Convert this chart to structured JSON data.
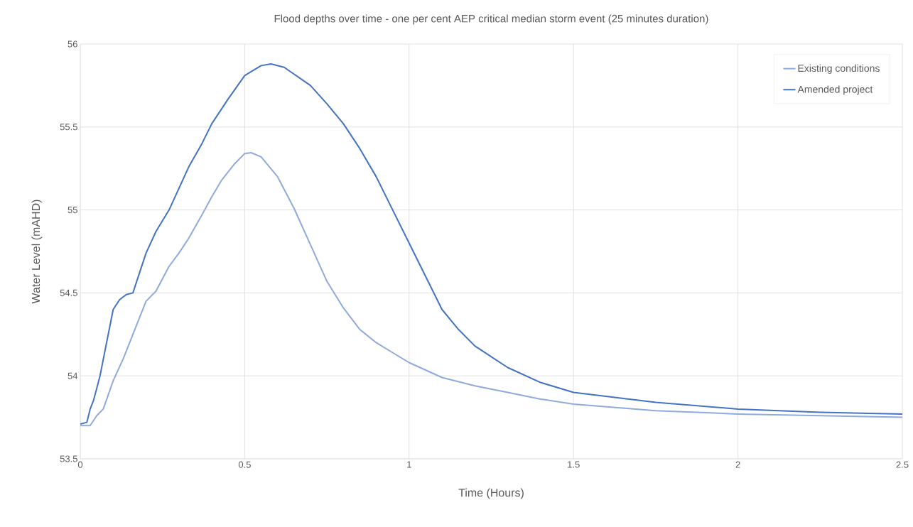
{
  "chart_data": {
    "type": "line",
    "title": "Flood depths over time - one per cent AEP critical median storm event (25 minutes duration)",
    "xlabel": "Time (Hours)",
    "ylabel": "Water Level (mAHD)",
    "xlim": [
      0,
      2.5
    ],
    "ylim": [
      53.5,
      56
    ],
    "xticks": [
      0,
      0.5,
      1,
      1.5,
      2,
      2.5
    ],
    "yticks": [
      53.5,
      54,
      54.5,
      55,
      55.5,
      56
    ],
    "grid": true,
    "legend": "top right",
    "marker": "none",
    "line_style": "solid",
    "series": [
      {
        "name": "Existing conditions",
        "color": "#8faadc",
        "x": [
          0,
          0.03,
          0.05,
          0.07,
          0.1,
          0.13,
          0.17,
          0.2,
          0.23,
          0.27,
          0.3,
          0.33,
          0.37,
          0.4,
          0.43,
          0.47,
          0.5,
          0.52,
          0.55,
          0.6,
          0.65,
          0.7,
          0.75,
          0.8,
          0.85,
          0.9,
          0.95,
          1.0,
          1.1,
          1.2,
          1.3,
          1.4,
          1.5,
          1.75,
          2.0,
          2.25,
          2.5
        ],
        "values": [
          53.7,
          53.7,
          53.76,
          53.8,
          53.97,
          54.1,
          54.3,
          54.45,
          54.51,
          54.66,
          54.74,
          54.83,
          54.97,
          55.08,
          55.18,
          55.28,
          55.34,
          55.345,
          55.32,
          55.2,
          55.01,
          54.79,
          54.57,
          54.41,
          54.28,
          54.2,
          54.14,
          54.08,
          53.99,
          53.94,
          53.9,
          53.86,
          53.83,
          53.79,
          53.77,
          53.76,
          53.75
        ]
      },
      {
        "name": "Amended project",
        "color": "#4472c4",
        "x": [
          0,
          0.02,
          0.03,
          0.04,
          0.06,
          0.08,
          0.1,
          0.12,
          0.14,
          0.16,
          0.18,
          0.2,
          0.23,
          0.27,
          0.3,
          0.33,
          0.37,
          0.4,
          0.45,
          0.5,
          0.55,
          0.58,
          0.62,
          0.7,
          0.75,
          0.8,
          0.85,
          0.9,
          0.95,
          1.0,
          1.05,
          1.1,
          1.15,
          1.2,
          1.3,
          1.4,
          1.5,
          1.75,
          2.0,
          2.25,
          2.5
        ],
        "values": [
          53.71,
          53.72,
          53.8,
          53.85,
          54.0,
          54.2,
          54.4,
          54.46,
          54.49,
          54.5,
          54.62,
          54.74,
          54.87,
          55.0,
          55.13,
          55.26,
          55.4,
          55.52,
          55.67,
          55.81,
          55.87,
          55.88,
          55.86,
          55.75,
          55.64,
          55.52,
          55.37,
          55.2,
          55.0,
          54.8,
          54.6,
          54.4,
          54.28,
          54.18,
          54.05,
          53.96,
          53.9,
          53.84,
          53.8,
          53.78,
          53.77
        ]
      }
    ]
  }
}
